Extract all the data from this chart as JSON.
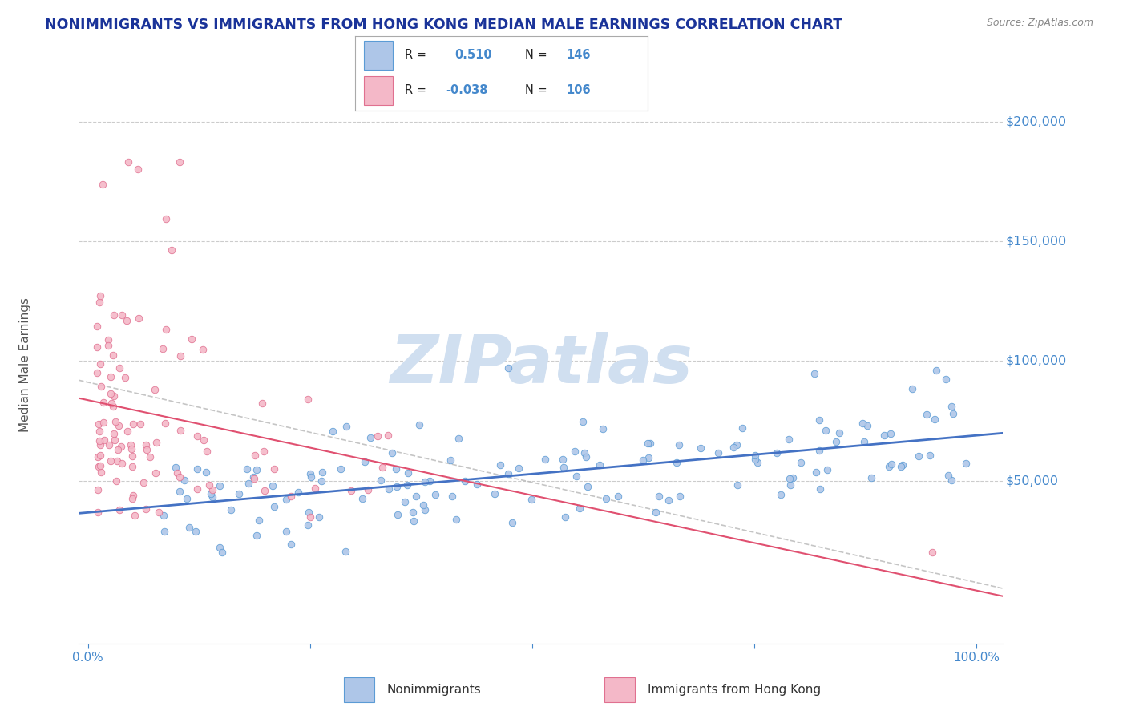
{
  "title": "NONIMMIGRANTS VS IMMIGRANTS FROM HONG KONG MEDIAN MALE EARNINGS CORRELATION CHART",
  "source": "Source: ZipAtlas.com",
  "ylabel": "Median Male Earnings",
  "blue_color": "#aec6e8",
  "blue_edge": "#5b9bd5",
  "pink_color": "#f4b8c8",
  "pink_edge": "#e07090",
  "trend_blue": "#4472c4",
  "trend_pink": "#e05070",
  "trend_gray": "#bbbbbb",
  "watermark": "ZIPatlas",
  "watermark_color": "#d0dff0",
  "title_color": "#1a3399",
  "axis_color": "#4488cc",
  "r1": 0.51,
  "n1": 146,
  "r2": -0.038,
  "n2": 106,
  "xlim": [
    -0.01,
    1.03
  ],
  "ylim": [
    -18000,
    215000
  ],
  "legend_label1": "Nonimmigrants",
  "legend_label2": "Immigrants from Hong Kong"
}
